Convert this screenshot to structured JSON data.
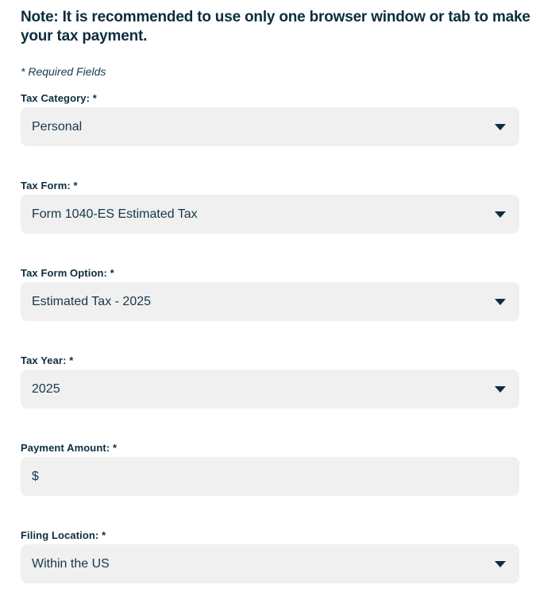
{
  "note": "Note: It is recommended to use only one browser window or tab to make your tax payment.",
  "required_note": "* Required Fields",
  "colors": {
    "text_dark_navy": "#0d2d3e",
    "field_background": "#f0f0f0",
    "page_background": "#ffffff"
  },
  "fields": [
    {
      "label": "Tax Category: *",
      "value": "Personal",
      "type": "select",
      "icon": "caret-down-icon"
    },
    {
      "label": "Tax Form: *",
      "value": "Form 1040-ES Estimated Tax",
      "type": "select",
      "icon": "caret-down-icon"
    },
    {
      "label": "Tax Form Option: *",
      "value": "Estimated Tax - 2025",
      "type": "select",
      "icon": "caret-down-icon"
    },
    {
      "label": "Tax Year: *",
      "value": "2025",
      "type": "select",
      "icon": "caret-down-icon"
    },
    {
      "label": "Payment Amount: *",
      "value": "",
      "prefix": "$",
      "type": "text"
    },
    {
      "label": "Filing Location: *",
      "value": "Within the US",
      "type": "select",
      "icon": "caret-down-icon"
    }
  ]
}
